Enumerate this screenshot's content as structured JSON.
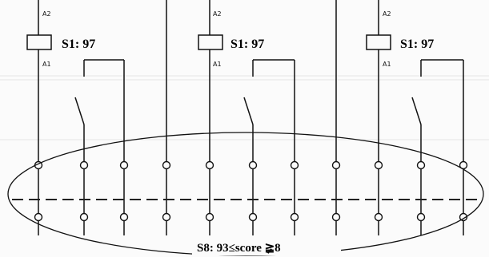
{
  "modules": [
    {
      "a2": "A2",
      "a1": "A1",
      "score": "S1: 97"
    },
    {
      "a2": "A2",
      "a1": "A1",
      "score": "S1: 97"
    },
    {
      "a2": "A2",
      "a1": "A1",
      "score": "S1: 97"
    }
  ],
  "range_label": "S8: 93≤score ≩8"
}
